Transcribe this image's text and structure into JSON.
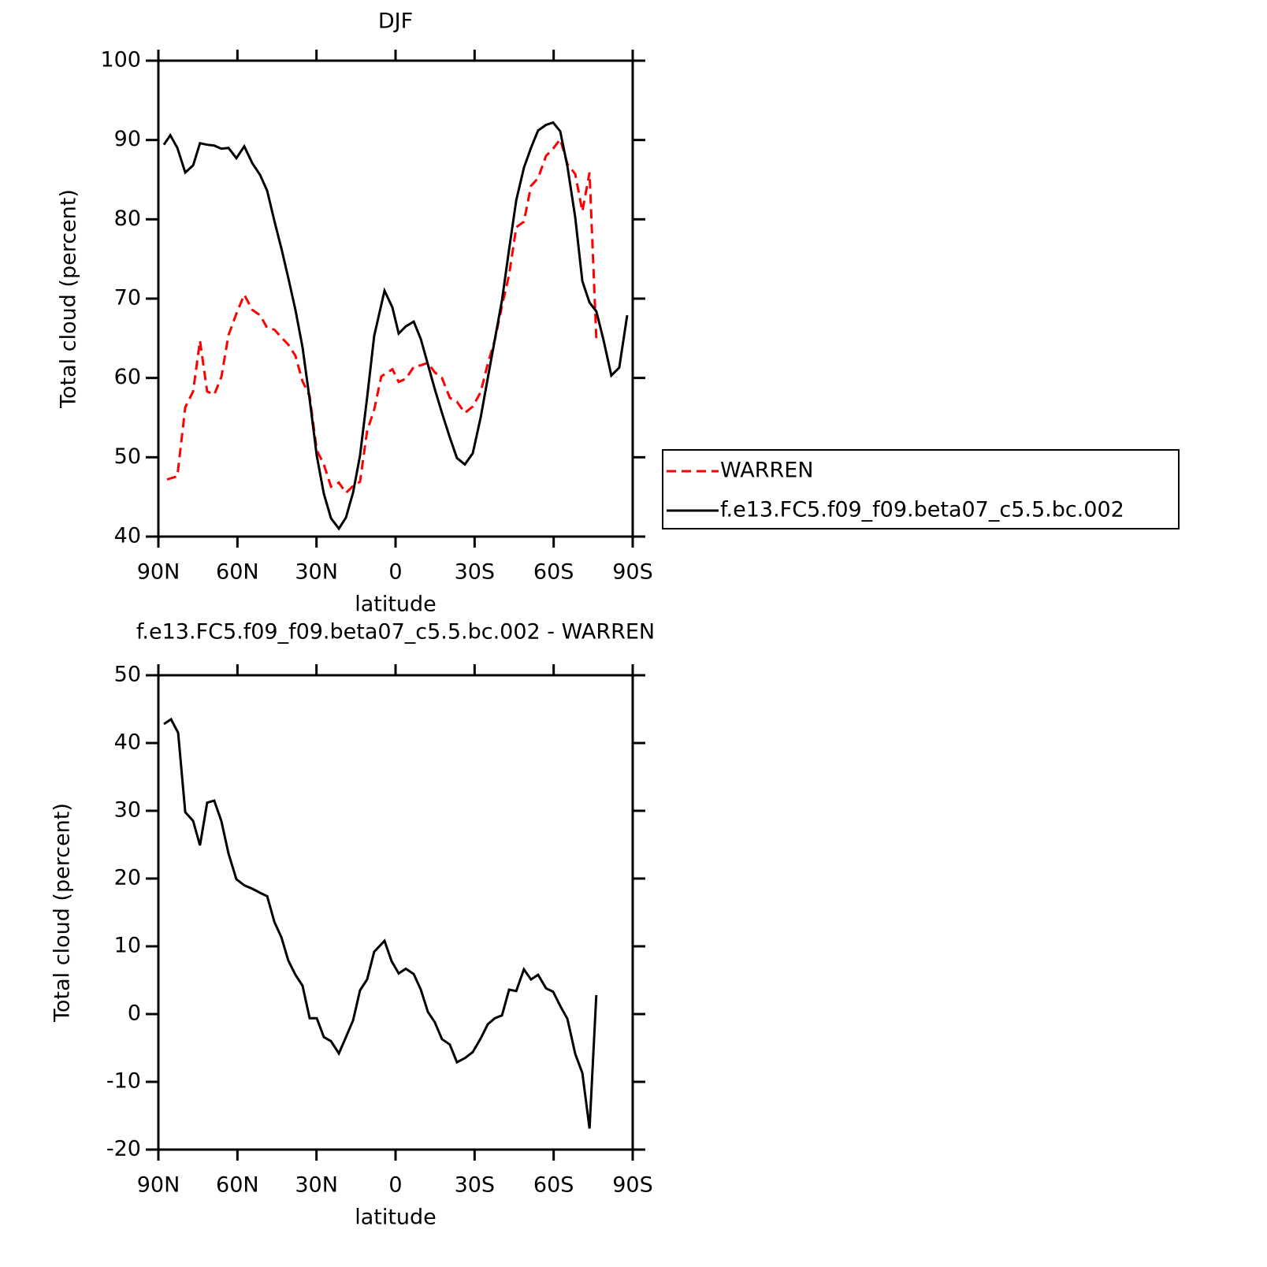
{
  "chart_data": [
    {
      "type": "line",
      "title": "DJF",
      "x_label": "latitude",
      "y_label": "Total cloud (percent)",
      "xlim": [
        90,
        -90
      ],
      "xticks": [
        {
          "value": 90,
          "label": "90N"
        },
        {
          "value": 60,
          "label": "60N"
        },
        {
          "value": 30,
          "label": "30N"
        },
        0,
        {
          "value": -30,
          "label": "30S"
        },
        {
          "value": -60,
          "label": "60S"
        },
        {
          "value": -90,
          "label": "90S"
        }
      ],
      "ylim": [
        40,
        100
      ],
      "yticks": [
        40,
        50,
        60,
        70,
        80,
        90,
        100
      ],
      "legend": "right",
      "series": [
        {
          "name": "WARREN",
          "color": "#ff0000",
          "dash": "dashed",
          "x": [
            86.7,
            82.8,
            79.8,
            76.8,
            74.2,
            71.5,
            68.8,
            66.1,
            63.4,
            60.4,
            57.4,
            54.4,
            51.4,
            48.7,
            46.0,
            43.3,
            40.7,
            38.0,
            35.3,
            32.6,
            29.9,
            27.2,
            24.5,
            21.5,
            18.8,
            16.1,
            13.5,
            10.8,
            8.1,
            5.4,
            1.2,
            -1.2,
            -3.9,
            -6.9,
            -9.6,
            -12.3,
            -14.9,
            -17.6,
            -20.6,
            -23.3,
            -26.3,
            -29.3,
            -32.3,
            -35.0,
            -37.7,
            -40.4,
            -43.1,
            -45.8,
            -48.7,
            -51.4,
            -54.1,
            -57.1,
            -59.8,
            -62.5,
            -65.2,
            -68.2,
            -70.9,
            -73.6,
            -76.2
          ],
          "values": [
            47.2,
            47.6,
            56.3,
            58.3,
            64.7,
            58.3,
            57.9,
            60.1,
            65.4,
            68.1,
            70.5,
            68.6,
            67.9,
            66.3,
            66.1,
            65.1,
            64.2,
            62.8,
            59.6,
            57.7,
            50.9,
            49.1,
            46.3,
            46.8,
            45.5,
            46.4,
            46.9,
            53.3,
            56.0,
            60.2,
            61.1,
            59.5,
            59.9,
            61.4,
            61.6,
            61.9,
            60.7,
            60.0,
            57.5,
            57.0,
            55.6,
            56.4,
            58.2,
            61.8,
            64.8,
            69.1,
            73.0,
            79.0,
            79.7,
            84.2,
            85.2,
            88.0,
            88.9,
            90.1,
            87.0,
            85.7,
            81.0,
            85.9,
            65.0
          ]
        },
        {
          "name": "f.e13.FC5.f09_f09.beta07_c5.5.bc.002",
          "color": "#000000",
          "dash": "solid",
          "x": [
            87.9,
            85.5,
            82.8,
            79.8,
            76.8,
            74.2,
            71.5,
            68.8,
            66.1,
            63.4,
            60.4,
            57.4,
            54.4,
            51.4,
            48.7,
            46.0,
            43.3,
            40.7,
            38.0,
            35.3,
            32.6,
            29.9,
            27.2,
            24.5,
            21.5,
            18.8,
            16.1,
            13.5,
            10.8,
            8.1,
            4.2,
            1.2,
            -1.2,
            -3.9,
            -6.9,
            -9.6,
            -12.3,
            -14.9,
            -17.6,
            -20.6,
            -23.3,
            -26.3,
            -29.3,
            -32.3,
            -35.0,
            -37.7,
            -40.4,
            -43.1,
            -45.8,
            -48.7,
            -51.4,
            -54.1,
            -57.1,
            -59.8,
            -62.5,
            -65.2,
            -68.2,
            -70.9,
            -73.6,
            -76.2,
            -78.9,
            -81.9,
            -84.9,
            -87.9
          ],
          "values": [
            89.4,
            90.6,
            89.0,
            85.9,
            86.8,
            89.6,
            89.4,
            89.3,
            88.9,
            89.0,
            87.7,
            89.2,
            87.1,
            85.6,
            83.6,
            79.8,
            76.3,
            72.6,
            68.6,
            63.9,
            57.3,
            50.2,
            45.4,
            42.3,
            41.0,
            42.4,
            45.6,
            50.2,
            57.5,
            65.3,
            71.0,
            68.9,
            65.6,
            66.5,
            67.1,
            64.9,
            61.7,
            58.6,
            55.6,
            52.5,
            49.9,
            49.1,
            50.5,
            55.0,
            60.0,
            64.9,
            69.8,
            76.2,
            82.4,
            86.5,
            89.0,
            91.2,
            91.9,
            92.2,
            91.1,
            86.7,
            80.2,
            72.2,
            69.5,
            68.4,
            64.8,
            60.3,
            61.3,
            67.9
          ]
        }
      ]
    },
    {
      "type": "line",
      "title": "f.e13.FC5.f09_f09.beta07_c5.5.bc.002 - WARREN",
      "x_label": "latitude",
      "y_label": "Total cloud (percent)",
      "xlim": [
        90,
        -90
      ],
      "xticks": [
        {
          "value": 90,
          "label": "90N"
        },
        {
          "value": 60,
          "label": "60N"
        },
        {
          "value": 30,
          "label": "30N"
        },
        0,
        {
          "value": -30,
          "label": "30S"
        },
        {
          "value": -60,
          "label": "60S"
        },
        {
          "value": -90,
          "label": "90S"
        }
      ],
      "ylim": [
        -20,
        50
      ],
      "yticks": [
        -20,
        -10,
        0,
        10,
        20,
        30,
        40,
        50
      ],
      "series": [
        {
          "color": "#000000",
          "dash": "solid",
          "x": [
            87.9,
            85.2,
            82.5,
            79.8,
            76.8,
            74.2,
            71.5,
            68.8,
            66.1,
            63.4,
            60.4,
            57.4,
            54.4,
            51.4,
            48.7,
            46.0,
            43.3,
            40.7,
            38.0,
            35.3,
            32.6,
            29.9,
            27.2,
            24.5,
            21.5,
            18.8,
            16.1,
            13.5,
            10.8,
            8.1,
            4.2,
            1.5,
            -1.2,
            -3.9,
            -6.9,
            -9.6,
            -12.3,
            -14.9,
            -17.6,
            -20.6,
            -23.3,
            -26.3,
            -29.3,
            -32.3,
            -35.0,
            -37.7,
            -40.4,
            -43.1,
            -45.8,
            -48.7,
            -51.4,
            -54.1,
            -57.1,
            -59.8,
            -62.5,
            -65.2,
            -68.2,
            -70.9,
            -73.6,
            -76.2
          ],
          "values": [
            42.8,
            43.5,
            41.5,
            29.8,
            28.5,
            24.9,
            31.2,
            31.5,
            28.5,
            23.7,
            19.9,
            19.0,
            18.5,
            17.9,
            17.4,
            13.6,
            11.3,
            7.9,
            5.8,
            4.2,
            -0.6,
            -0.6,
            -3.4,
            -4.0,
            -5.8,
            -3.4,
            -0.9,
            3.5,
            5.1,
            9.2,
            10.8,
            7.8,
            6.0,
            6.7,
            5.9,
            3.6,
            0.3,
            -1.2,
            -3.7,
            -4.5,
            -7.1,
            -6.5,
            -5.6,
            -3.6,
            -1.5,
            -0.6,
            -0.2,
            3.6,
            3.4,
            6.6,
            5.1,
            5.8,
            3.8,
            3.3,
            1.2,
            -0.7,
            -5.9,
            -8.7,
            -16.9,
            2.8
          ]
        }
      ]
    }
  ]
}
